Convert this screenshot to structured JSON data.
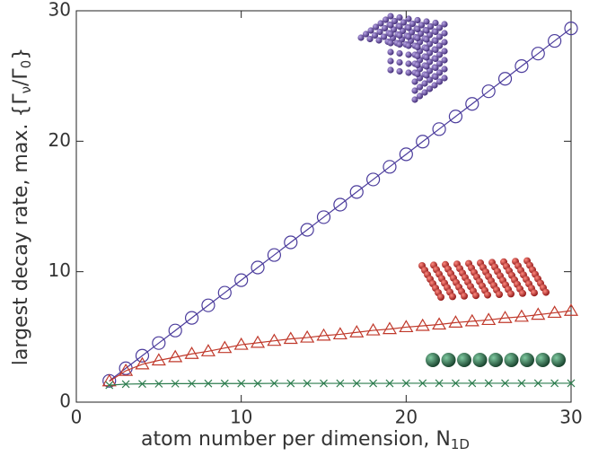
{
  "chart_data": {
    "type": "scatter",
    "x_label": [
      "atom number per dimension, N",
      "1D"
    ],
    "y_label": [
      "largest decay rate, max. {Γ",
      "ν",
      "/Γ",
      "0",
      "}"
    ],
    "x": [
      2,
      3,
      4,
      5,
      6,
      7,
      8,
      9,
      10,
      11,
      12,
      13,
      14,
      15,
      16,
      17,
      18,
      19,
      20,
      21,
      22,
      23,
      24,
      25,
      26,
      27,
      28,
      29,
      30
    ],
    "series": [
      {
        "color": "#4b3c9c",
        "marker": "circle",
        "values": [
          1.63,
          2.6,
          3.56,
          4.53,
          5.49,
          6.46,
          7.42,
          8.39,
          9.35,
          10.32,
          11.28,
          12.25,
          13.21,
          14.18,
          15.14,
          16.11,
          17.07,
          18.04,
          19.0,
          19.97,
          20.93,
          21.9,
          22.86,
          23.83,
          24.79,
          25.76,
          26.72,
          27.69,
          28.65
        ]
      },
      {
        "color": "#c0392b",
        "marker": "triangle",
        "values": [
          1.6,
          2.4,
          2.9,
          3.2,
          3.45,
          3.7,
          3.9,
          4.15,
          4.4,
          4.55,
          4.7,
          4.85,
          4.95,
          5.1,
          5.2,
          5.35,
          5.5,
          5.6,
          5.75,
          5.85,
          5.95,
          6.1,
          6.2,
          6.3,
          6.45,
          6.55,
          6.7,
          6.85,
          7.0
        ]
      },
      {
        "color": "#2e7d4f",
        "marker": "cross",
        "values": [
          1.3,
          1.38,
          1.4,
          1.41,
          1.42,
          1.42,
          1.43,
          1.43,
          1.43,
          1.43,
          1.44,
          1.44,
          1.44,
          1.44,
          1.44,
          1.44,
          1.44,
          1.44,
          1.45,
          1.45,
          1.45,
          1.45,
          1.45,
          1.45,
          1.45,
          1.45,
          1.45,
          1.45,
          1.45
        ]
      }
    ],
    "xlim": [
      0,
      30
    ],
    "ylim": [
      0,
      30
    ],
    "xticks": [
      0,
      10,
      20,
      30
    ],
    "yticks": [
      0,
      10,
      20,
      30
    ]
  }
}
